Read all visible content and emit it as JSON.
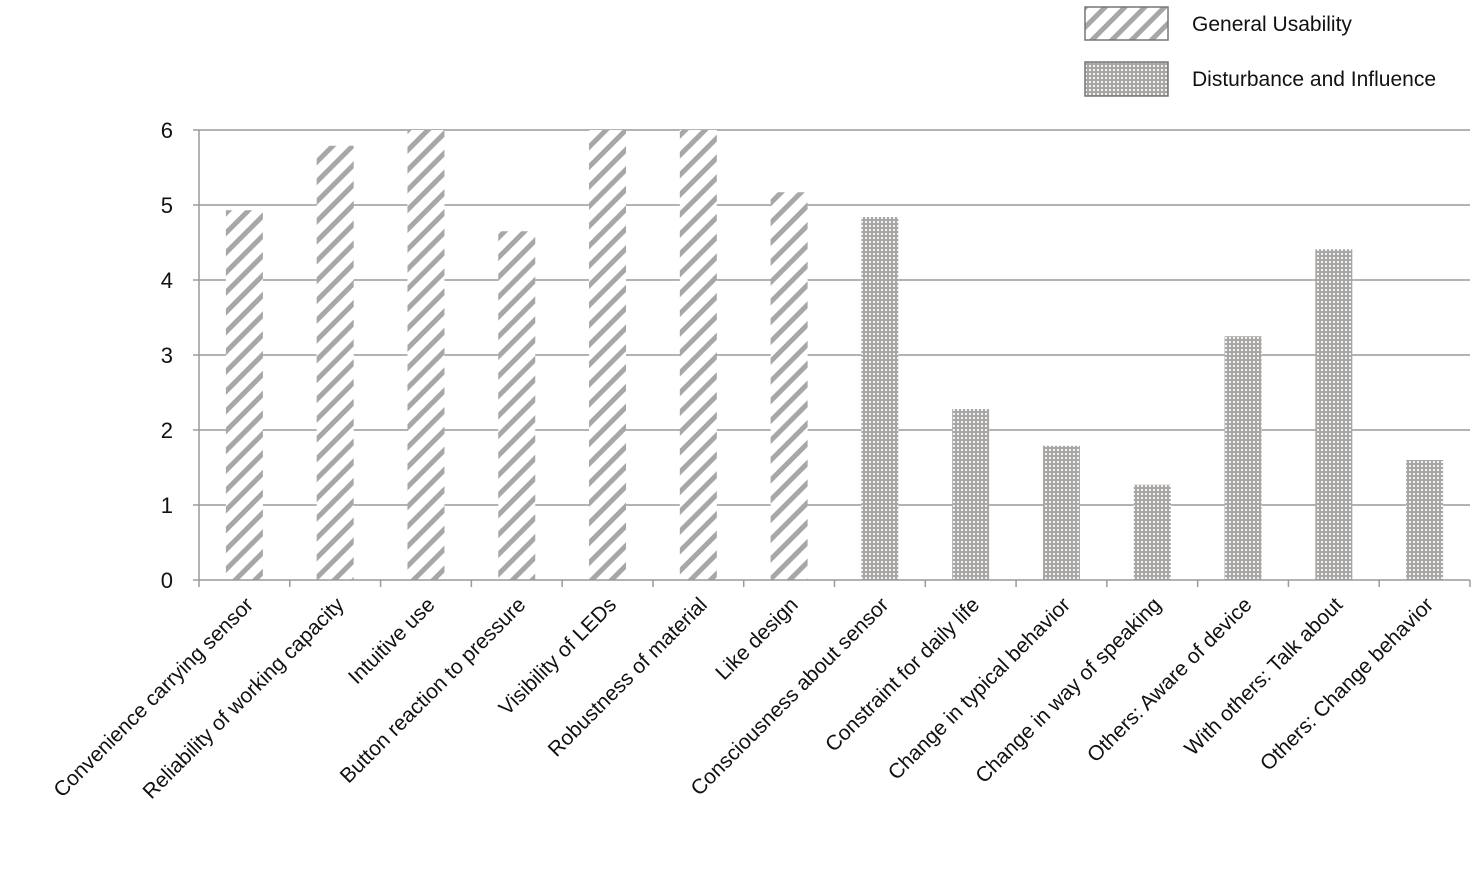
{
  "chart_data": {
    "type": "bar",
    "title": "",
    "xlabel": "",
    "ylabel": "",
    "ylim": [
      0,
      6
    ],
    "yticks": [
      "0",
      "1",
      "2",
      "3",
      "4",
      "5",
      "6"
    ],
    "grid": true,
    "legend_position": "top-right",
    "categories": [
      "Convenience carrying sensor",
      "Reliability of working capacity",
      "Intuitive use",
      "Button reaction to pressure",
      "Visibility of LEDs",
      "Robustness of material",
      "Like design",
      "Consciousness about sensor",
      "Constraint for daily life",
      "Change in typical behavior",
      "Change in way of speaking",
      "Others: Aware of device",
      "With others: Talk about",
      "Others: Change behavior"
    ],
    "series": [
      {
        "name": "General Usability",
        "pattern": "diagonal-stripes",
        "color": "#a9a6a6",
        "values": [
          4.93,
          5.79,
          6.0,
          4.65,
          6.0,
          6.0,
          5.17,
          null,
          null,
          null,
          null,
          null,
          null,
          null
        ]
      },
      {
        "name": "Disturbance and Influence",
        "pattern": "dots",
        "color": "#a9a6a6",
        "values": [
          null,
          null,
          null,
          null,
          null,
          null,
          null,
          4.84,
          2.28,
          1.79,
          1.27,
          3.25,
          4.41,
          1.6
        ]
      }
    ]
  }
}
